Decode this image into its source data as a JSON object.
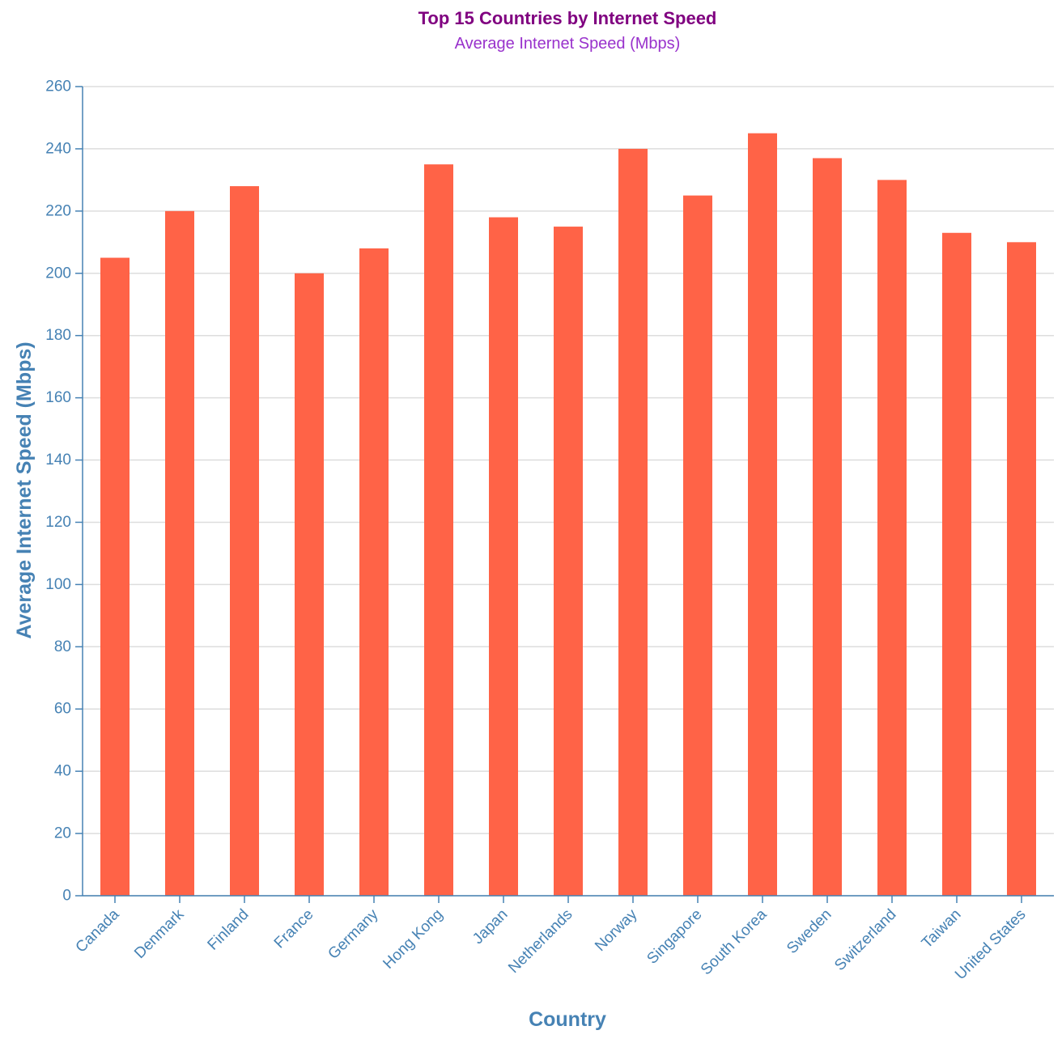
{
  "colors": {
    "title": "#800080",
    "subtitle": "#9932cc",
    "axis": "#4682b4",
    "bar": "#ff6347",
    "grid": "#dddddd"
  },
  "chart_data": {
    "type": "bar",
    "title": "Top 15 Countries by Internet Speed",
    "subtitle": "Average Internet Speed (Mbps)",
    "xlabel": "Country",
    "ylabel": "Average Internet Speed (Mbps)",
    "ylim": [
      0,
      260
    ],
    "yticks": [
      0,
      20,
      40,
      60,
      80,
      100,
      120,
      140,
      160,
      180,
      200,
      220,
      240,
      260
    ],
    "grid": true,
    "categories": [
      "Canada",
      "Denmark",
      "Finland",
      "France",
      "Germany",
      "Hong Kong",
      "Japan",
      "Netherlands",
      "Norway",
      "Singapore",
      "South Korea",
      "Sweden",
      "Switzerland",
      "Taiwan",
      "United States"
    ],
    "values": [
      205,
      220,
      228,
      200,
      208,
      235,
      218,
      215,
      240,
      225,
      245,
      237,
      230,
      213,
      210
    ]
  }
}
